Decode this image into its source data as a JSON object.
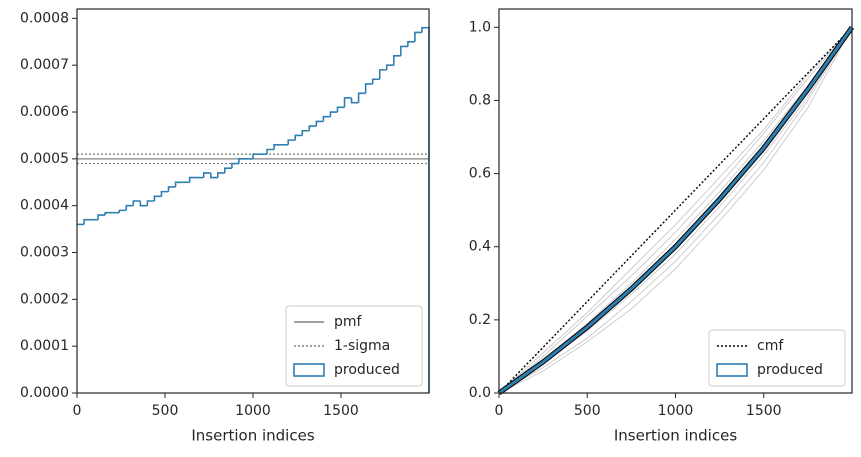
{
  "chart_data": [
    {
      "type": "histogram",
      "xlabel": "Insertion indices",
      "name": "produced",
      "color": "#2e7fb0",
      "bins": [
        0,
        40,
        80,
        120,
        160,
        200,
        240,
        280,
        320,
        360,
        400,
        440,
        480,
        520,
        560,
        600,
        640,
        680,
        720,
        760,
        800,
        840,
        880,
        920,
        960,
        1000,
        1040,
        1080,
        1120,
        1160,
        1200,
        1240,
        1280,
        1320,
        1360,
        1400,
        1440,
        1480,
        1520,
        1560,
        1600,
        1640,
        1680,
        1720,
        1760,
        1800,
        1840,
        1880,
        1920,
        1960,
        2000
      ],
      "counts": [
        0.00036,
        0.00037,
        0.00037,
        0.00038,
        0.000385,
        0.000385,
        0.00039,
        0.0004,
        0.00041,
        0.0004,
        0.00041,
        0.00042,
        0.00043,
        0.00044,
        0.00045,
        0.00045,
        0.00046,
        0.00046,
        0.00047,
        0.00046,
        0.00047,
        0.00048,
        0.00049,
        0.0005,
        0.0005,
        0.00051,
        0.00051,
        0.00052,
        0.00053,
        0.00053,
        0.00054,
        0.00055,
        0.00056,
        0.00057,
        0.00058,
        0.00059,
        0.0006,
        0.00061,
        0.00063,
        0.00062,
        0.00064,
        0.00066,
        0.00067,
        0.00069,
        0.0007,
        0.00072,
        0.00074,
        0.00075,
        0.00077,
        0.00078
      ],
      "reference": [
        {
          "name": "pmf",
          "values": [
            0.0005
          ],
          "color": "#808080",
          "style": "solid"
        },
        {
          "name": "1-sigma",
          "values": [
            0.00049,
            0.00051
          ],
          "color": "#808080",
          "style": "dotted"
        }
      ],
      "xlim": [
        0,
        2000
      ],
      "xticks": [
        0,
        500,
        1000,
        1500
      ],
      "ylim": [
        0,
        0.00082
      ],
      "yticks": [
        {
          "value": 0,
          "label": "0.0000"
        },
        {
          "value": 0.0001,
          "label": "0.0001"
        },
        {
          "value": 0.0002,
          "label": "0.0002"
        },
        {
          "value": 0.0003,
          "label": "0.0003"
        },
        {
          "value": 0.0004,
          "label": "0.0004"
        },
        {
          "value": 0.0005,
          "label": "0.0005"
        },
        {
          "value": 0.0006,
          "label": "0.0006"
        },
        {
          "value": 0.0007,
          "label": "0.0007"
        },
        {
          "value": 0.0008,
          "label": "0.0008"
        }
      ],
      "legend": "lower right"
    },
    {
      "type": "line",
      "xlabel": "Insertion indices",
      "samples": [
        {
          "color": "#888888",
          "x": [
            0,
            250,
            500,
            750,
            1000,
            1250,
            1500,
            1750,
            2000
          ],
          "values": [
            0,
            0.07,
            0.15,
            0.25,
            0.36,
            0.49,
            0.63,
            0.8,
            1
          ]
        },
        {
          "color": "#888888",
          "x": [
            0,
            250,
            500,
            750,
            1000,
            1250,
            1500,
            1750,
            2000
          ],
          "values": [
            0,
            0.1,
            0.21,
            0.32,
            0.44,
            0.57,
            0.71,
            0.86,
            1
          ]
        },
        {
          "color": "#888888",
          "x": [
            0,
            250,
            500,
            750,
            1000,
            1250,
            1500,
            1750,
            2000
          ],
          "values": [
            0,
            0.08,
            0.17,
            0.27,
            0.38,
            0.51,
            0.65,
            0.81,
            1
          ]
        },
        {
          "color": "#888888",
          "x": [
            0,
            250,
            500,
            750,
            1000,
            1250,
            1500,
            1750,
            2000
          ],
          "values": [
            0,
            0.09,
            0.19,
            0.3,
            0.42,
            0.55,
            0.69,
            0.84,
            1
          ]
        },
        {
          "color": "#888888",
          "x": [
            0,
            250,
            500,
            750,
            1000,
            1250,
            1500,
            1750,
            2000
          ],
          "values": [
            0,
            0.06,
            0.14,
            0.23,
            0.34,
            0.47,
            0.61,
            0.78,
            1
          ]
        },
        {
          "color": "#888888",
          "x": [
            0,
            250,
            500,
            750,
            1000,
            1250,
            1500,
            1750,
            2000
          ],
          "values": [
            0,
            0.11,
            0.22,
            0.34,
            0.46,
            0.59,
            0.72,
            0.87,
            1
          ]
        }
      ],
      "series": [
        {
          "name": "cmf",
          "color": "#000000",
          "style": "dotted",
          "x": [
            0,
            2000
          ],
          "values": [
            0,
            1
          ]
        },
        {
          "name": "produced",
          "color": "#2e7fb0",
          "style": "solid",
          "x": [
            0,
            250,
            500,
            750,
            1000,
            1250,
            1500,
            1750,
            2000
          ],
          "values": [
            0,
            0.085,
            0.18,
            0.285,
            0.4,
            0.53,
            0.67,
            0.83,
            1
          ]
        }
      ],
      "xlim": [
        0,
        2000
      ],
      "xticks": [
        0,
        500,
        1000,
        1500
      ],
      "ylim": [
        0,
        1.05
      ],
      "yticks": [
        {
          "value": 0,
          "label": "0.0"
        },
        {
          "value": 0.2,
          "label": "0.2"
        },
        {
          "value": 0.4,
          "label": "0.4"
        },
        {
          "value": 0.6,
          "label": "0.6"
        },
        {
          "value": 0.8,
          "label": "0.8"
        },
        {
          "value": 1,
          "label": "1.0"
        }
      ],
      "legend": "lower right"
    }
  ]
}
